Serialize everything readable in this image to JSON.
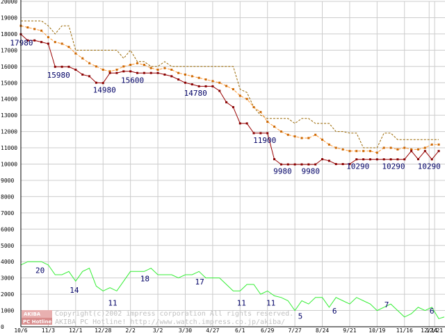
{
  "chart_data": {
    "type": "line",
    "title": "",
    "xlabel": "",
    "ylabel": "",
    "ylim": [
      0,
      20000
    ],
    "grid": true,
    "y_ticks": [
      0,
      1000,
      2000,
      3000,
      4000,
      5000,
      6000,
      7000,
      8000,
      9000,
      10000,
      11000,
      12000,
      13000,
      14000,
      15000,
      16000,
      17000,
      18000,
      19000,
      20000
    ],
    "x_ticks": [
      {
        "x": 0,
        "label": "10/6"
      },
      {
        "x": 4,
        "label": "11/3"
      },
      {
        "x": 8,
        "label": "12/1"
      },
      {
        "x": 12,
        "label": "12/28"
      },
      {
        "x": 16,
        "label": "2/2"
      },
      {
        "x": 20,
        "label": "3/2"
      },
      {
        "x": 24,
        "label": "3/30"
      },
      {
        "x": 28,
        "label": "4/27"
      },
      {
        "x": 32,
        "label": "6/1"
      },
      {
        "x": 36,
        "label": "6/29"
      },
      {
        "x": 40,
        "label": "7/27"
      },
      {
        "x": 44,
        "label": "8/24"
      },
      {
        "x": 48,
        "label": "9/21"
      },
      {
        "x": 52,
        "label": "10/19"
      },
      {
        "x": 56,
        "label": "11/16"
      },
      {
        "x": 59.6,
        "label": "12/14"
      },
      {
        "x": 60.4,
        "label": "12/21"
      }
    ],
    "x_max": 61,
    "series": [
      {
        "color": "#996600",
        "dash": "3,2",
        "markers": false,
        "points": [
          [
            0,
            18800
          ],
          [
            3,
            18800
          ],
          [
            4,
            18500
          ],
          [
            5,
            18000
          ],
          [
            6,
            18500
          ],
          [
            7,
            18500
          ],
          [
            8,
            17000
          ],
          [
            9,
            17000
          ],
          [
            10,
            17000
          ],
          [
            11,
            17000
          ],
          [
            12,
            17000
          ],
          [
            13,
            17000
          ],
          [
            14,
            17000
          ],
          [
            15,
            16500
          ],
          [
            16,
            17000
          ],
          [
            17,
            16300
          ],
          [
            18,
            16300
          ],
          [
            19,
            16000
          ],
          [
            20,
            16000
          ],
          [
            21,
            16300
          ],
          [
            22,
            16000
          ],
          [
            23,
            16000
          ],
          [
            24,
            16000
          ],
          [
            25,
            16000
          ],
          [
            26,
            16000
          ],
          [
            27,
            16000
          ],
          [
            28,
            16000
          ],
          [
            29,
            16000
          ],
          [
            30,
            16000
          ],
          [
            31,
            16000
          ],
          [
            32,
            14600
          ],
          [
            33,
            14400
          ],
          [
            34,
            13500
          ],
          [
            35,
            13000
          ],
          [
            36,
            12800
          ],
          [
            37,
            12800
          ],
          [
            38,
            12800
          ],
          [
            39,
            12800
          ],
          [
            40,
            12500
          ],
          [
            41,
            12800
          ],
          [
            42,
            12800
          ],
          [
            43,
            12500
          ],
          [
            44,
            12500
          ],
          [
            45,
            12500
          ],
          [
            46,
            12000
          ],
          [
            47,
            12000
          ],
          [
            48,
            11900
          ],
          [
            49,
            11900
          ],
          [
            50,
            11000
          ],
          [
            51,
            11000
          ],
          [
            52,
            11000
          ],
          [
            53,
            11900
          ],
          [
            54,
            11900
          ],
          [
            55,
            11500
          ],
          [
            56,
            11500
          ],
          [
            57,
            11500
          ],
          [
            58,
            11500
          ],
          [
            59,
            11500
          ],
          [
            60,
            11500
          ],
          [
            61,
            11500
          ]
        ]
      },
      {
        "color": "#ff9933",
        "dash": "4,2",
        "markers": true,
        "marker_color": "#cc6600",
        "points": [
          [
            0,
            18500
          ],
          [
            1,
            18400
          ],
          [
            2,
            18300
          ],
          [
            3,
            18200
          ],
          [
            4,
            17800
          ],
          [
            5,
            17500
          ],
          [
            6,
            17400
          ],
          [
            7,
            17200
          ],
          [
            8,
            16800
          ],
          [
            9,
            16500
          ],
          [
            10,
            16200
          ],
          [
            11,
            16000
          ],
          [
            12,
            15800
          ],
          [
            13,
            15700
          ],
          [
            14,
            15800
          ],
          [
            15,
            16000
          ],
          [
            16,
            16100
          ],
          [
            17,
            16200
          ],
          [
            18,
            16100
          ],
          [
            19,
            15900
          ],
          [
            20,
            15800
          ],
          [
            21,
            15900
          ],
          [
            22,
            15800
          ],
          [
            23,
            15600
          ],
          [
            24,
            15500
          ],
          [
            25,
            15400
          ],
          [
            26,
            15300
          ],
          [
            27,
            15200
          ],
          [
            28,
            15100
          ],
          [
            29,
            15000
          ],
          [
            30,
            14800
          ],
          [
            31,
            14600
          ],
          [
            32,
            14200
          ],
          [
            33,
            14000
          ],
          [
            34,
            13500
          ],
          [
            35,
            13200
          ],
          [
            36,
            12600
          ],
          [
            37,
            12300
          ],
          [
            38,
            12000
          ],
          [
            39,
            11800
          ],
          [
            40,
            11700
          ],
          [
            41,
            11600
          ],
          [
            42,
            11600
          ],
          [
            43,
            11800
          ],
          [
            44,
            11500
          ],
          [
            45,
            11200
          ],
          [
            46,
            11000
          ],
          [
            47,
            10900
          ],
          [
            48,
            10800
          ],
          [
            49,
            10800
          ],
          [
            50,
            10800
          ],
          [
            51,
            10800
          ],
          [
            52,
            10700
          ],
          [
            53,
            11000
          ],
          [
            54,
            11000
          ],
          [
            55,
            10900
          ],
          [
            56,
            11000
          ],
          [
            57,
            10900
          ],
          [
            58,
            10900
          ],
          [
            59,
            11000
          ],
          [
            60,
            11200
          ],
          [
            61,
            11200
          ]
        ]
      },
      {
        "color": "#990000",
        "dash": "",
        "markers": true,
        "marker_color": "#880000",
        "points": [
          [
            0,
            17980
          ],
          [
            1,
            17600
          ],
          [
            2,
            17600
          ],
          [
            3,
            17500
          ],
          [
            4,
            17400
          ],
          [
            5,
            15980
          ],
          [
            6,
            15980
          ],
          [
            7,
            15980
          ],
          [
            8,
            15800
          ],
          [
            9,
            15500
          ],
          [
            10,
            15400
          ],
          [
            11,
            15000
          ],
          [
            12,
            14980
          ],
          [
            13,
            15600
          ],
          [
            14,
            15600
          ],
          [
            15,
            15700
          ],
          [
            16,
            15700
          ],
          [
            17,
            15600
          ],
          [
            18,
            15600
          ],
          [
            19,
            15600
          ],
          [
            20,
            15600
          ],
          [
            21,
            15500
          ],
          [
            22,
            15400
          ],
          [
            23,
            15200
          ],
          [
            24,
            15000
          ],
          [
            25,
            14900
          ],
          [
            26,
            14780
          ],
          [
            27,
            14780
          ],
          [
            28,
            14780
          ],
          [
            29,
            14500
          ],
          [
            30,
            13800
          ],
          [
            31,
            13500
          ],
          [
            32,
            12500
          ],
          [
            33,
            12500
          ],
          [
            34,
            11900
          ],
          [
            35,
            11900
          ],
          [
            36,
            11900
          ],
          [
            37,
            10300
          ],
          [
            38,
            9980
          ],
          [
            39,
            9980
          ],
          [
            40,
            9980
          ],
          [
            41,
            9980
          ],
          [
            42,
            9980
          ],
          [
            43,
            9980
          ],
          [
            44,
            10300
          ],
          [
            45,
            10200
          ],
          [
            46,
            10000
          ],
          [
            47,
            10000
          ],
          [
            48,
            10000
          ],
          [
            49,
            10290
          ],
          [
            50,
            10290
          ],
          [
            51,
            10290
          ],
          [
            52,
            10290
          ],
          [
            53,
            10290
          ],
          [
            54,
            10290
          ],
          [
            55,
            10290
          ],
          [
            56,
            10290
          ],
          [
            57,
            10800
          ],
          [
            58,
            10300
          ],
          [
            59,
            10800
          ],
          [
            60,
            10290
          ],
          [
            61,
            10800
          ]
        ]
      },
      {
        "color": "#33ee33",
        "dash": "",
        "markers": false,
        "points": [
          [
            0,
            3800
          ],
          [
            1,
            4000
          ],
          [
            2,
            4000
          ],
          [
            3,
            4000
          ],
          [
            4,
            3800
          ],
          [
            5,
            3200
          ],
          [
            6,
            3200
          ],
          [
            7,
            3400
          ],
          [
            8,
            2800
          ],
          [
            9,
            3400
          ],
          [
            10,
            3600
          ],
          [
            11,
            2500
          ],
          [
            12,
            2200
          ],
          [
            13,
            2400
          ],
          [
            14,
            2200
          ],
          [
            15,
            2800
          ],
          [
            16,
            3400
          ],
          [
            17,
            3400
          ],
          [
            18,
            3400
          ],
          [
            19,
            3600
          ],
          [
            20,
            3200
          ],
          [
            21,
            3200
          ],
          [
            22,
            3200
          ],
          [
            23,
            3000
          ],
          [
            24,
            3200
          ],
          [
            25,
            3200
          ],
          [
            26,
            3400
          ],
          [
            27,
            3000
          ],
          [
            28,
            3000
          ],
          [
            29,
            3000
          ],
          [
            30,
            2600
          ],
          [
            31,
            2200
          ],
          [
            32,
            2200
          ],
          [
            33,
            2600
          ],
          [
            34,
            2600
          ],
          [
            35,
            2000
          ],
          [
            36,
            2200
          ],
          [
            37,
            1900
          ],
          [
            38,
            1800
          ],
          [
            39,
            1600
          ],
          [
            40,
            1000
          ],
          [
            41,
            1600
          ],
          [
            42,
            1400
          ],
          [
            43,
            1800
          ],
          [
            44,
            1800
          ],
          [
            45,
            1200
          ],
          [
            46,
            1800
          ],
          [
            47,
            1600
          ],
          [
            48,
            1400
          ],
          [
            49,
            1800
          ],
          [
            50,
            1600
          ],
          [
            51,
            1400
          ],
          [
            52,
            1000
          ],
          [
            53,
            1200
          ],
          [
            54,
            1400
          ],
          [
            55,
            1000
          ],
          [
            56,
            600
          ],
          [
            57,
            800
          ],
          [
            58,
            1200
          ],
          [
            59,
            1000
          ],
          [
            60,
            1200
          ],
          [
            61,
            500
          ],
          [
            61.8,
            600
          ]
        ]
      }
    ],
    "annotations": [
      {
        "x": 0.1,
        "y": 17300,
        "text": "17980"
      },
      {
        "x": 5.5,
        "y": 15300,
        "text": "15980"
      },
      {
        "x": 12.2,
        "y": 14400,
        "text": "14980"
      },
      {
        "x": 16.3,
        "y": 15000,
        "text": "15600"
      },
      {
        "x": 25.5,
        "y": 14200,
        "text": "14780"
      },
      {
        "x": 35.6,
        "y": 11300,
        "text": "11900"
      },
      {
        "x": 38.2,
        "y": 9400,
        "text": "9980"
      },
      {
        "x": 42.3,
        "y": 9400,
        "text": "9980"
      },
      {
        "x": 49.2,
        "y": 9700,
        "text": "10290"
      },
      {
        "x": 54.4,
        "y": 9700,
        "text": "10290"
      },
      {
        "x": 59.6,
        "y": 9700,
        "text": "10290"
      },
      {
        "x": 2.8,
        "y": 3300,
        "text": "20"
      },
      {
        "x": 7.8,
        "y": 2100,
        "text": "14"
      },
      {
        "x": 13.4,
        "y": 1300,
        "text": "11"
      },
      {
        "x": 18.1,
        "y": 2800,
        "text": "18"
      },
      {
        "x": 26.1,
        "y": 2600,
        "text": "17"
      },
      {
        "x": 32.2,
        "y": 1300,
        "text": "11"
      },
      {
        "x": 36.5,
        "y": 1300,
        "text": "11"
      },
      {
        "x": 40.8,
        "y": 500,
        "text": "5"
      },
      {
        "x": 45.8,
        "y": 800,
        "text": "6"
      },
      {
        "x": 53.4,
        "y": 1200,
        "text": "7"
      },
      {
        "x": 60.0,
        "y": 800,
        "text": "6"
      }
    ],
    "watermark": {
      "logo_top": "AKIBA",
      "logo_bottom": "PC Hotline!",
      "line1": "Copyright(c)2002 impress corporation All rights reserved.",
      "line2": "AKIBA PC Hotline!  http://www.watch.impress.co.jp/akiba/"
    }
  }
}
